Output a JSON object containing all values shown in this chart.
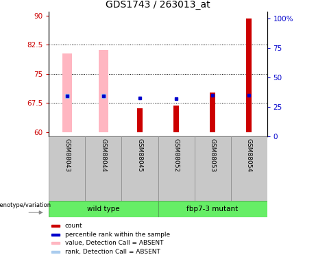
{
  "title": "GDS1743 / 263013_at",
  "samples": [
    "GSM88043",
    "GSM88044",
    "GSM88045",
    "GSM88052",
    "GSM88053",
    "GSM88054"
  ],
  "ylim_left": [
    59,
    91
  ],
  "ylim_right": [
    0,
    106
  ],
  "yticks_left": [
    60,
    67.5,
    75,
    82.5,
    90
  ],
  "yticks_right": [
    0,
    25,
    50,
    75,
    100
  ],
  "ytick_labels_right": [
    "0",
    "25",
    "50",
    "75",
    "100%"
  ],
  "hlines": [
    67.5,
    75,
    82.5
  ],
  "red_bars": [
    null,
    null,
    66.2,
    66.8,
    70.3,
    89.3
  ],
  "pink_bars": [
    80.3,
    81.2,
    null,
    null,
    null,
    null
  ],
  "blue_squares": [
    69.3,
    69.3,
    68.8,
    68.6,
    69.5,
    69.5
  ],
  "light_blue_squares": [
    69.3,
    69.3,
    null,
    null,
    null,
    null
  ],
  "bar_bottom": 60,
  "pink_bar_width": 0.28,
  "red_bar_width": 0.14,
  "group_wt": "wild type",
  "group_mut": "fbp7-3 mutant",
  "geno_label": "genotype/variation",
  "green_color": "#66EE66",
  "gray_color": "#C8C8C8",
  "legend_labels": [
    "count",
    "percentile rank within the sample",
    "value, Detection Call = ABSENT",
    "rank, Detection Call = ABSENT"
  ],
  "legend_colors": [
    "#CC0000",
    "#0000CC",
    "#FFB6C1",
    "#AACCEE"
  ]
}
